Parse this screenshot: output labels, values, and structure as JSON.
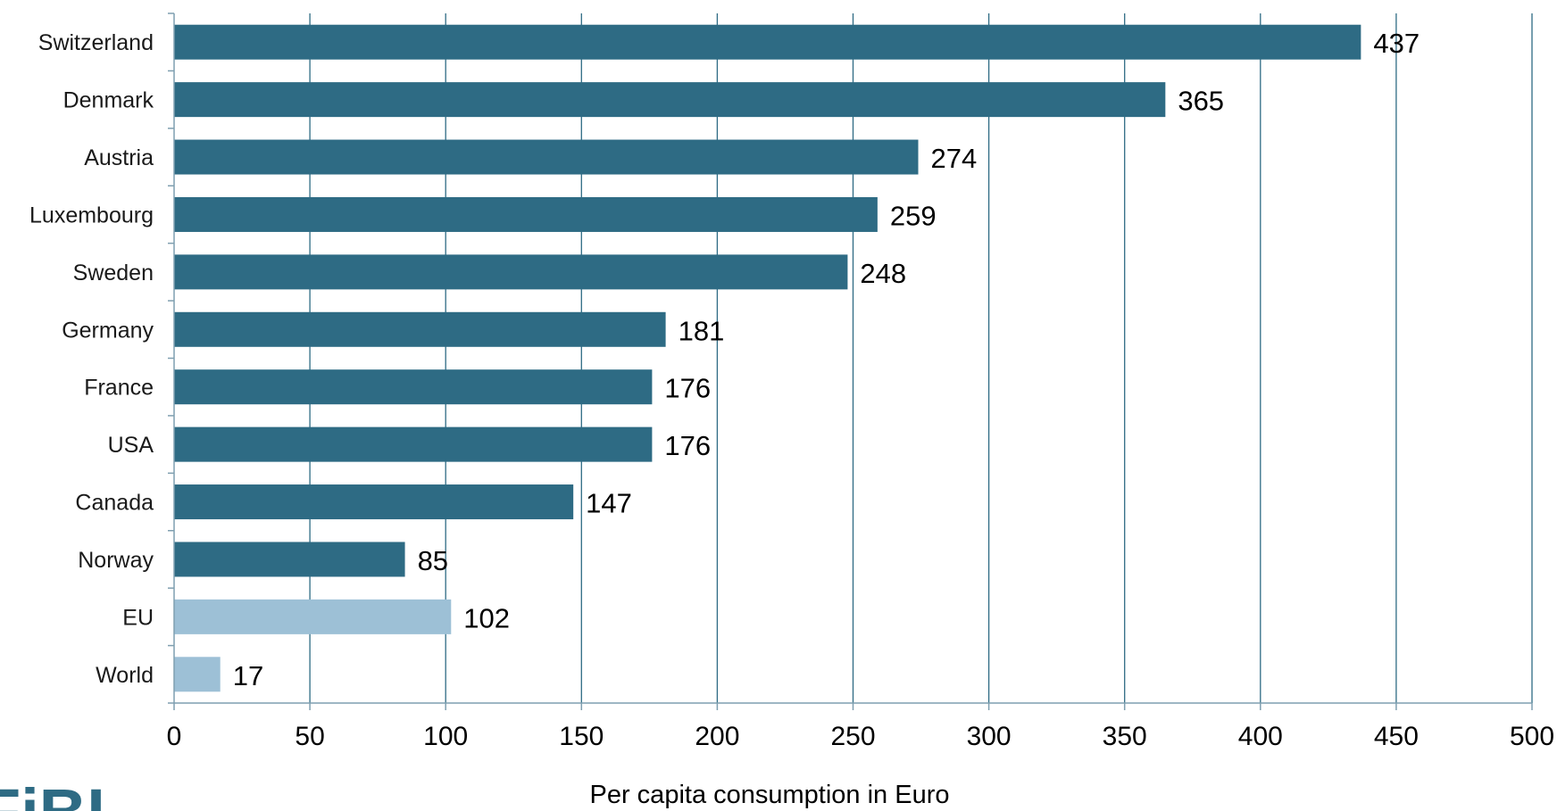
{
  "chart_data": {
    "type": "bar",
    "orientation": "horizontal",
    "categories": [
      "Switzerland",
      "Denmark",
      "Austria",
      "Luxembourg",
      "Sweden",
      "Germany",
      "France",
      "USA",
      "Canada",
      "Norway",
      "EU",
      "World"
    ],
    "values": [
      437,
      365,
      274,
      259,
      248,
      181,
      176,
      176,
      147,
      85,
      102,
      17
    ],
    "xlabel": "Per capita consumption in Euro",
    "ylabel": "",
    "xlim": [
      0,
      500
    ],
    "xticks": [
      0,
      50,
      100,
      150,
      200,
      250,
      300,
      350,
      400,
      450,
      500
    ],
    "grid": "vertical",
    "legend": "none",
    "colors": {
      "country": "#2e6b84",
      "aggregate": "#9dc0d6",
      "gridline": "#2e6b84",
      "axis": "#7f9fb0"
    },
    "highlighted_categories": [
      "EU",
      "World"
    ]
  },
  "logo": {
    "text": "FiBL",
    "icon": "fibl-logo"
  }
}
